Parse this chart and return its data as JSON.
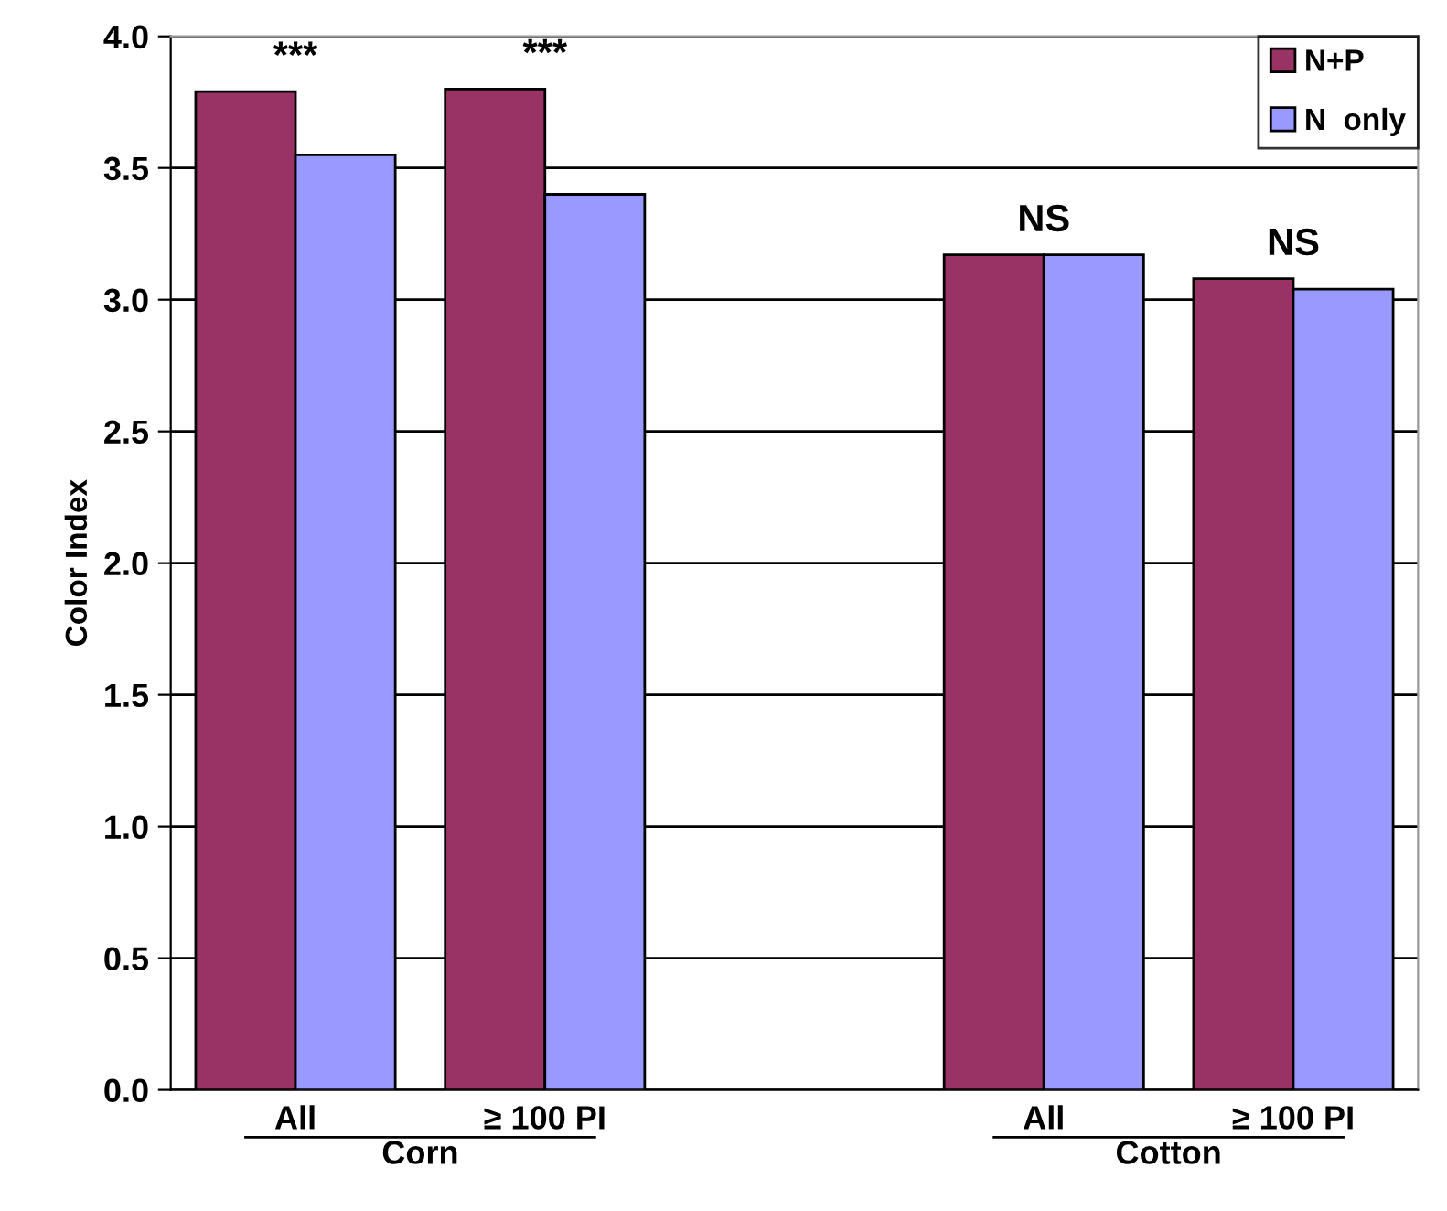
{
  "chart_data": {
    "type": "bar",
    "ylabel": "Color Index",
    "categories": [
      "All",
      "≥ 100 PI",
      null,
      "All",
      "≥ 100 PI"
    ],
    "series": [
      {
        "name": "N+P",
        "color": "#993366",
        "values": [
          3.79,
          3.8,
          null,
          3.17,
          3.08
        ]
      },
      {
        "name": "N  only",
        "color": "#9999ff",
        "values": [
          3.55,
          3.4,
          null,
          3.17,
          3.04
        ]
      }
    ],
    "ylim": [
      0,
      4
    ],
    "yticks": [
      {
        "value": 0,
        "label": "0.0"
      },
      {
        "value": 0.5,
        "label": "0.5"
      },
      {
        "value": 1,
        "label": "1.0"
      },
      {
        "value": 1.5,
        "label": "1.5"
      },
      {
        "value": 2,
        "label": "2.0"
      },
      {
        "value": 2.5,
        "label": "2.5"
      },
      {
        "value": 3,
        "label": "3.0"
      },
      {
        "value": 3.5,
        "label": "3.5"
      },
      {
        "value": 4,
        "label": "4.0"
      }
    ],
    "grid": "y",
    "legend": "top right",
    "annotations": [
      "***",
      "***",
      "NS",
      "NS",
      "Corn",
      "Cotton"
    ]
  }
}
